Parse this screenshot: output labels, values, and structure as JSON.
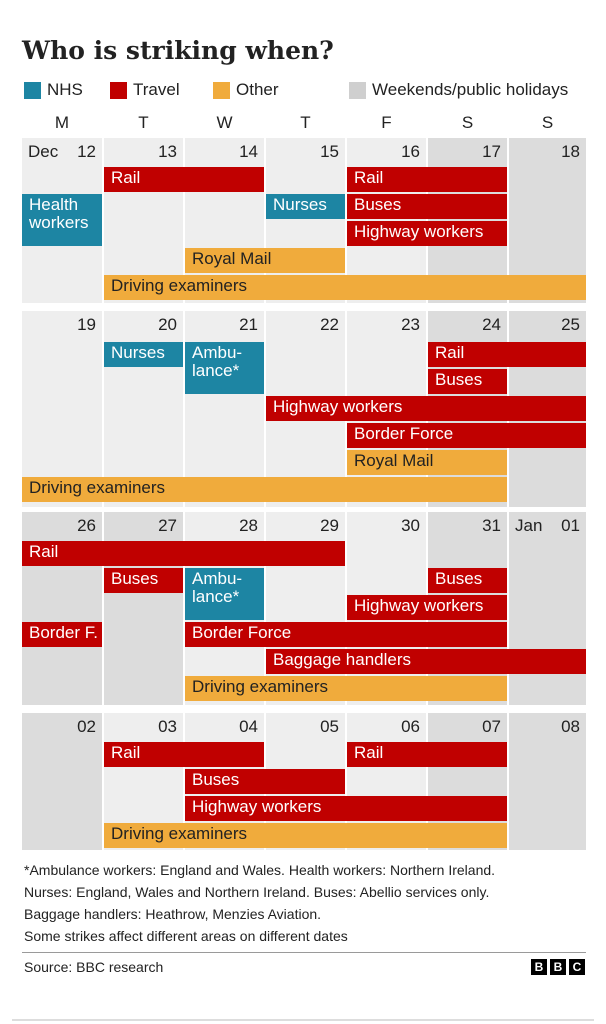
{
  "title": "Who is striking when?",
  "legend": [
    {
      "label": "NHS",
      "color": "#1d85a3"
    },
    {
      "label": "Travel",
      "color": "#c00000"
    },
    {
      "label": "Other",
      "color": "#f0ab3c"
    },
    {
      "label": "Weekends/public holidays",
      "color": "#cfcfcf"
    }
  ],
  "colors": {
    "NHS": "#1d85a3",
    "Travel": "#c00000",
    "Other": "#f0ab3c",
    "weekday": "#eeeeee",
    "holiday": "#dcdcdc"
  },
  "chart_data": {
    "type": "table",
    "weekday_headers": [
      "M",
      "T",
      "W",
      "T",
      "F",
      "S",
      "S"
    ],
    "weeks": [
      {
        "days": [
          {
            "label": "12",
            "month": "Dec",
            "holiday": false
          },
          {
            "label": "13",
            "holiday": false
          },
          {
            "label": "14",
            "holiday": false
          },
          {
            "label": "15",
            "holiday": false
          },
          {
            "label": "16",
            "holiday": false
          },
          {
            "label": "17",
            "holiday": true
          },
          {
            "label": "18",
            "holiday": true
          }
        ],
        "strikes": [
          {
            "label": "Rail",
            "category": "Travel",
            "start_day": 2,
            "end_day": 3,
            "lane": 0
          },
          {
            "label": "Rail",
            "category": "Travel",
            "start_day": 5,
            "end_day": 6,
            "lane": 0
          },
          {
            "label": "Health workers",
            "category": "NHS",
            "start_day": 1,
            "end_day": 1,
            "lane": 1,
            "lanes": 2
          },
          {
            "label": "Nurses",
            "category": "NHS",
            "start_day": 4,
            "end_day": 4,
            "lane": 1
          },
          {
            "label": "Buses",
            "category": "Travel",
            "start_day": 5,
            "end_day": 6,
            "lane": 1
          },
          {
            "label": "Highway workers",
            "category": "Travel",
            "start_day": 5,
            "end_day": 6,
            "lane": 2
          },
          {
            "label": "Royal Mail",
            "category": "Other",
            "start_day": 3,
            "end_day": 4,
            "lane": 3
          },
          {
            "label": "Driving examiners",
            "category": "Other",
            "start_day": 2,
            "end_day": 7,
            "lane": 4
          }
        ]
      },
      {
        "days": [
          {
            "label": "19",
            "holiday": false
          },
          {
            "label": "20",
            "holiday": false
          },
          {
            "label": "21",
            "holiday": false
          },
          {
            "label": "22",
            "holiday": false
          },
          {
            "label": "23",
            "holiday": false
          },
          {
            "label": "24",
            "holiday": true
          },
          {
            "label": "25",
            "holiday": true
          }
        ],
        "strikes": [
          {
            "label": "Nurses",
            "category": "NHS",
            "start_day": 2,
            "end_day": 2,
            "lane": 0
          },
          {
            "label": "Ambu-lance*",
            "category": "NHS",
            "start_day": 3,
            "end_day": 3,
            "lane": 0,
            "lanes": 2
          },
          {
            "label": "Rail",
            "category": "Travel",
            "start_day": 6,
            "end_day": 7,
            "lane": 0
          },
          {
            "label": "Buses",
            "category": "Travel",
            "start_day": 6,
            "end_day": 6,
            "lane": 1
          },
          {
            "label": "Highway workers",
            "category": "Travel",
            "start_day": 4,
            "end_day": 7,
            "lane": 2
          },
          {
            "label": "Border Force",
            "category": "Travel",
            "start_day": 5,
            "end_day": 7,
            "lane": 3
          },
          {
            "label": "Royal Mail",
            "category": "Other",
            "start_day": 5,
            "end_day": 6,
            "lane": 4
          },
          {
            "label": "Driving examiners",
            "category": "Other",
            "start_day": 1,
            "end_day": 6,
            "lane": 5
          }
        ]
      },
      {
        "days": [
          {
            "label": "26",
            "holiday": true
          },
          {
            "label": "27",
            "holiday": true
          },
          {
            "label": "28",
            "holiday": false
          },
          {
            "label": "29",
            "holiday": false
          },
          {
            "label": "30",
            "holiday": false
          },
          {
            "label": "31",
            "holiday": true
          },
          {
            "label": "01",
            "month": "Jan",
            "holiday": true
          }
        ],
        "strikes": [
          {
            "label": "Rail",
            "category": "Travel",
            "start_day": 1,
            "end_day": 4,
            "lane": 0
          },
          {
            "label": "Buses",
            "category": "Travel",
            "start_day": 2,
            "end_day": 2,
            "lane": 1
          },
          {
            "label": "Ambu-lance*",
            "category": "NHS",
            "start_day": 3,
            "end_day": 3,
            "lane": 1,
            "lanes": 2
          },
          {
            "label": "Buses",
            "category": "Travel",
            "start_day": 6,
            "end_day": 6,
            "lane": 1
          },
          {
            "label": "Highway workers",
            "category": "Travel",
            "start_day": 5,
            "end_day": 6,
            "lane": 2
          },
          {
            "label": "Border F.",
            "category": "Travel",
            "start_day": 1,
            "end_day": 1,
            "lane": 3
          },
          {
            "label": "Border Force",
            "category": "Travel",
            "start_day": 3,
            "end_day": 6,
            "lane": 3
          },
          {
            "label": "Baggage handlers",
            "category": "Travel",
            "start_day": 4,
            "end_day": 7,
            "lane": 4
          },
          {
            "label": "Driving examiners",
            "category": "Other",
            "start_day": 3,
            "end_day": 6,
            "lane": 5
          }
        ]
      },
      {
        "days": [
          {
            "label": "02",
            "holiday": true
          },
          {
            "label": "03",
            "holiday": false
          },
          {
            "label": "04",
            "holiday": false
          },
          {
            "label": "05",
            "holiday": false
          },
          {
            "label": "06",
            "holiday": false
          },
          {
            "label": "07",
            "holiday": true
          },
          {
            "label": "08",
            "holiday": true
          }
        ],
        "strikes": [
          {
            "label": "Rail",
            "category": "Travel",
            "start_day": 2,
            "end_day": 3,
            "lane": 0
          },
          {
            "label": "Rail",
            "category": "Travel",
            "start_day": 5,
            "end_day": 6,
            "lane": 0
          },
          {
            "label": "Buses",
            "category": "Travel",
            "start_day": 3,
            "end_day": 4,
            "lane": 1
          },
          {
            "label": "Highway workers",
            "category": "Travel",
            "start_day": 3,
            "end_day": 6,
            "lane": 2
          },
          {
            "label": "Driving examiners",
            "category": "Other",
            "start_day": 2,
            "end_day": 6,
            "lane": 3
          }
        ]
      }
    ]
  },
  "footnotes": [
    "*Ambulance workers: England and Wales. Health workers: Northern Ireland.",
    "Nurses: England, Wales and Northern Ireland. Buses: Abellio services only.",
    "Baggage handlers: Heathrow, Menzies Aviation.",
    "Some strikes affect different areas on different dates"
  ],
  "source": "Source: BBC research",
  "logo_letters": [
    "B",
    "B",
    "C"
  ]
}
